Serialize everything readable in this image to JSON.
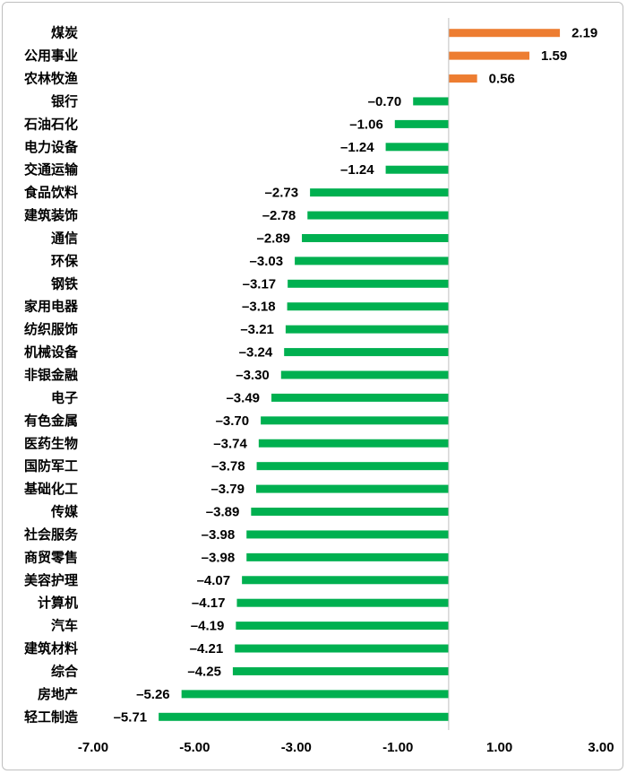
{
  "chart_data": {
    "type": "bar",
    "orientation": "horizontal",
    "title": "",
    "xlabel": "",
    "ylabel": "",
    "xlim": [
      -7,
      3
    ],
    "xticks": [
      "-7.00",
      "-5.00",
      "-3.00",
      "-1.00",
      "1.00",
      "3.00"
    ],
    "grid": false,
    "legend": "none",
    "colors": {
      "positive": "#ED7D31",
      "negative": "#00B050",
      "zero_line": "#bfbfbf"
    },
    "categories": [
      "煤炭",
      "公用事业",
      "农林牧渔",
      "银行",
      "石油石化",
      "电力设备",
      "交通运输",
      "食品饮料",
      "建筑装饰",
      "通信",
      "环保",
      "钢铁",
      "家用电器",
      "纺织服饰",
      "机械设备",
      "非银金融",
      "电子",
      "有色金属",
      "医药生物",
      "国防军工",
      "基础化工",
      "传媒",
      "社会服务",
      "商贸零售",
      "美容护理",
      "计算机",
      "汽车",
      "建筑材料",
      "综合",
      "房地产",
      "轻工制造"
    ],
    "values": [
      2.19,
      1.59,
      0.56,
      -0.7,
      -1.06,
      -1.24,
      -1.24,
      -2.73,
      -2.78,
      -2.89,
      -3.03,
      -3.17,
      -3.18,
      -3.21,
      -3.24,
      -3.3,
      -3.49,
      -3.7,
      -3.74,
      -3.78,
      -3.79,
      -3.89,
      -3.98,
      -3.98,
      -4.07,
      -4.17,
      -4.19,
      -4.21,
      -4.25,
      -5.26,
      -5.71
    ],
    "labels": [
      "2.19",
      "1.59",
      "0.56",
      "–0.70",
      "–1.06",
      "–1.24",
      "–1.24",
      "–2.73",
      "–2.78",
      "–2.89",
      "–3.03",
      "–3.17",
      "–3.18",
      "–3.21",
      "–3.24",
      "–3.30",
      "–3.49",
      "–3.70",
      "–3.74",
      "–3.78",
      "–3.79",
      "–3.89",
      "–3.98",
      "–3.98",
      "–4.07",
      "–4.17",
      "–4.19",
      "–4.21",
      "–4.25",
      "–5.26",
      "–5.71"
    ]
  }
}
